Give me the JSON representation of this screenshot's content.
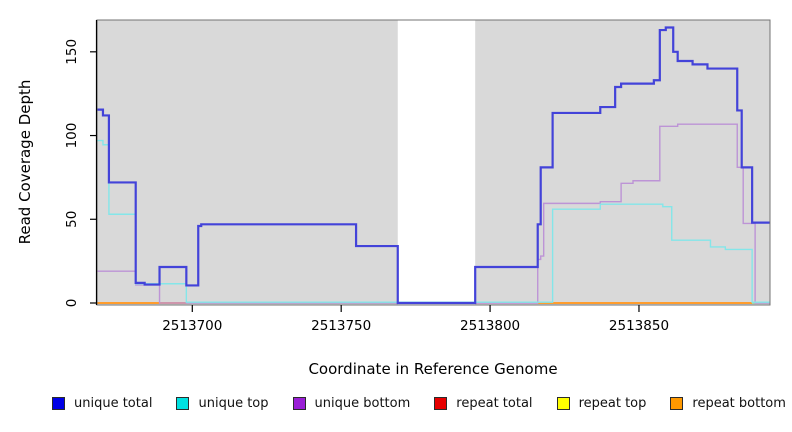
{
  "chart_data": {
    "type": "line",
    "subtype": "step-after",
    "title": "",
    "xlabel": "Coordinate in Reference Genome",
    "ylabel": "Read Coverage Depth",
    "xlim": [
      2513668,
      2513894
    ],
    "ylim": [
      0,
      169
    ],
    "x_ticks": [
      2513700,
      2513750,
      2513800,
      2513850
    ],
    "y_ticks": [
      0,
      50,
      100,
      150
    ],
    "grid": false,
    "panel_bg": "#d9d9d9",
    "masked_region": {
      "from": 2513769,
      "to": 2513795,
      "color": "#ffffff"
    },
    "legend_position": "bottom",
    "series": [
      {
        "name": "unique total",
        "legend_color": "#0000e6",
        "line_color": "#4343d9",
        "line_width": 2.2,
        "points": [
          [
            2513668,
            115.5
          ],
          [
            2513670,
            112
          ],
          [
            2513672,
            72
          ],
          [
            2513681,
            12
          ],
          [
            2513684,
            11
          ],
          [
            2513689,
            21.5
          ],
          [
            2513698,
            10.5
          ],
          [
            2513702,
            46
          ],
          [
            2513703,
            47
          ],
          [
            2513755,
            34
          ],
          [
            2513769,
            0
          ],
          [
            2513795,
            21.5
          ],
          [
            2513816,
            47
          ],
          [
            2513817,
            81
          ],
          [
            2513821,
            113.5
          ],
          [
            2513837,
            117
          ],
          [
            2513842,
            129
          ],
          [
            2513844,
            131
          ],
          [
            2513855,
            133
          ],
          [
            2513857,
            163
          ],
          [
            2513859,
            164.5
          ],
          [
            2513861.5,
            150
          ],
          [
            2513863,
            144.5
          ],
          [
            2513868,
            142.5
          ],
          [
            2513873,
            140
          ],
          [
            2513883,
            115
          ],
          [
            2513884.5,
            81
          ],
          [
            2513888,
            48
          ]
        ]
      },
      {
        "name": "unique top",
        "legend_color": "#00e0e0",
        "line_color": "#84e6e9",
        "line_width": 1.4,
        "points": [
          [
            2513668,
            97
          ],
          [
            2513670,
            94.5
          ],
          [
            2513672,
            53
          ],
          [
            2513681,
            11.5
          ],
          [
            2513698,
            0.5
          ],
          [
            2513821,
            56
          ],
          [
            2513837,
            59
          ],
          [
            2513858,
            57.5
          ],
          [
            2513861,
            37.5
          ],
          [
            2513874,
            33.5
          ],
          [
            2513879,
            32
          ],
          [
            2513888,
            0.5
          ]
        ]
      },
      {
        "name": "unique bottom",
        "legend_color": "#9a1fd6",
        "line_color": "#bd94d6",
        "line_width": 1.4,
        "points": [
          [
            2513668,
            19
          ],
          [
            2513681,
            10.8
          ],
          [
            2513689,
            0
          ],
          [
            2513816,
            26
          ],
          [
            2513817,
            28
          ],
          [
            2513818,
            59.5
          ],
          [
            2513837,
            60.5
          ],
          [
            2513844,
            71.5
          ],
          [
            2513848,
            73
          ],
          [
            2513857,
            105.5
          ],
          [
            2513863,
            106.8
          ],
          [
            2513883,
            81
          ],
          [
            2513885,
            47.5
          ],
          [
            2513889,
            0
          ]
        ]
      },
      {
        "name": "repeat total",
        "legend_color": "#e60000",
        "line_color": "#e583a8",
        "line_width": 1.6,
        "points": [
          [
            2513668,
            0
          ]
        ]
      },
      {
        "name": "repeat top",
        "legend_color": "#ffff00",
        "line_color": "#e6e066",
        "line_width": 1.6,
        "points": [
          [
            2513668,
            0
          ]
        ]
      },
      {
        "name": "repeat bottom",
        "legend_color": "#ff9900",
        "line_color": "#ff9d2e",
        "line_width": 2,
        "points": [
          [
            2513668,
            0
          ]
        ]
      }
    ],
    "baseline_segments": [
      {
        "from": 2513668,
        "to": 2513698,
        "color": "#ff9d2e",
        "width": 2
      },
      {
        "from": 2513698,
        "to": 2513769,
        "color": "#8ed88e",
        "width": 1.6
      },
      {
        "from": 2513795,
        "to": 2513816,
        "color": "#e583a8",
        "width": 1.6
      },
      {
        "from": 2513816,
        "to": 2513888,
        "color": "#ff9d2e",
        "width": 2
      },
      {
        "from": 2513888,
        "to": 2513894,
        "color": "#8ed88e",
        "width": 1.6
      }
    ]
  }
}
